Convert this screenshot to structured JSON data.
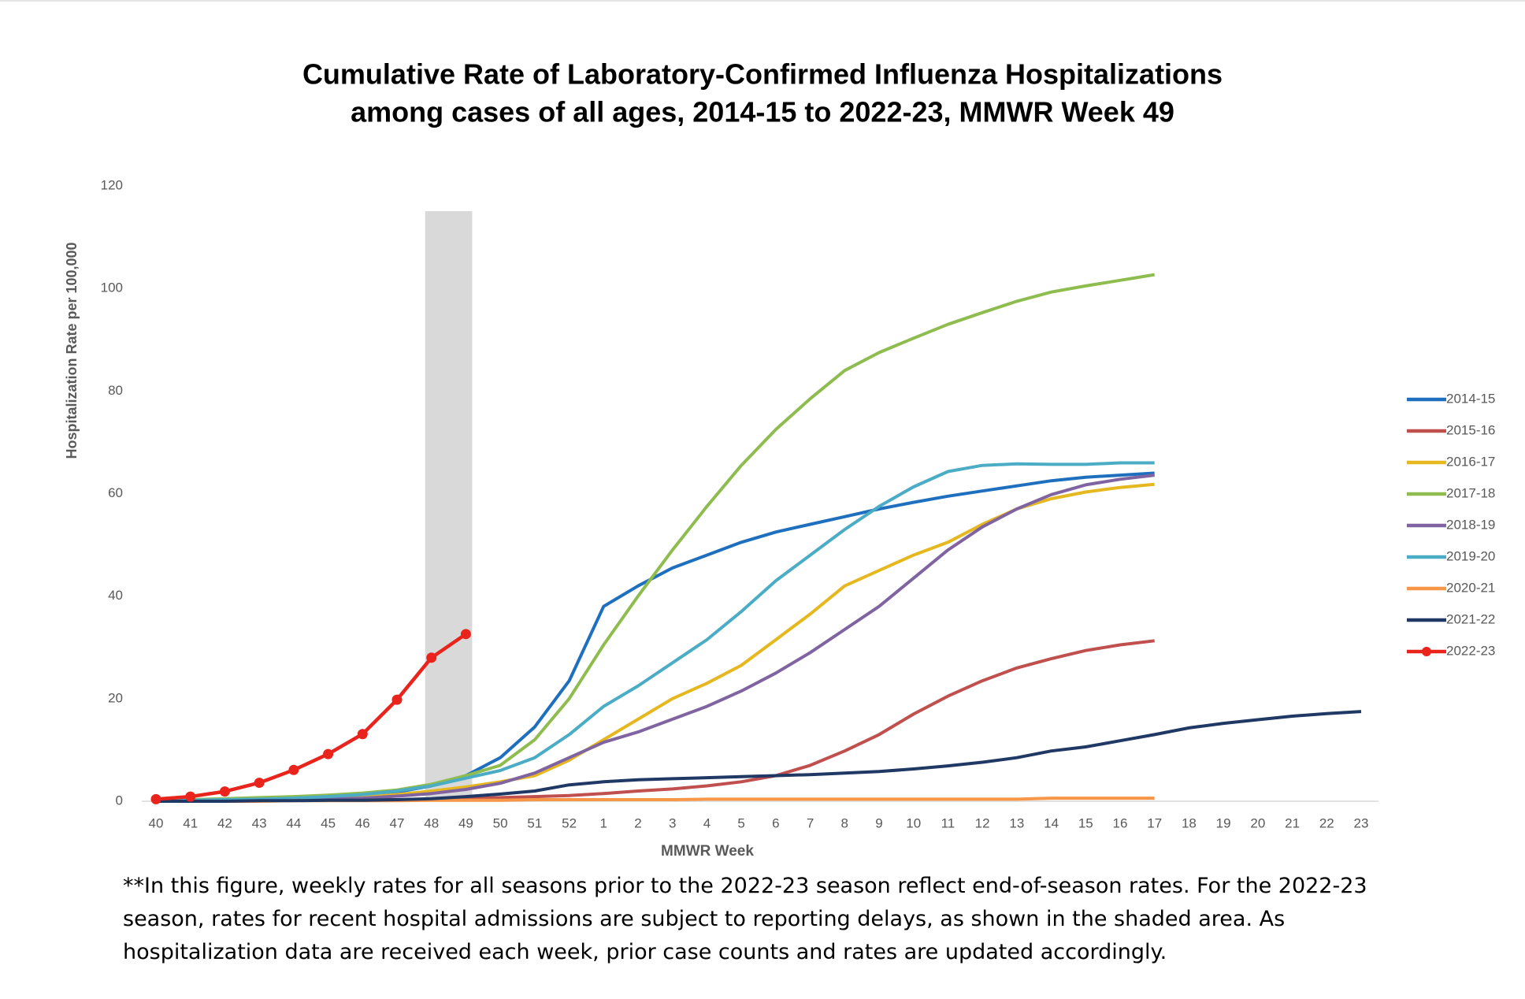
{
  "chart_data": {
    "type": "line",
    "title": [
      "Cumulative Rate of Laboratory-Confirmed Influenza Hospitalizations",
      "among cases of all ages, 2014-15 to 2022-23, MMWR Week 49"
    ],
    "x_label": "MMWR Week",
    "y_label": "Hospitalization Rate per 100,000",
    "categories": [
      "40",
      "41",
      "42",
      "43",
      "44",
      "45",
      "46",
      "47",
      "48",
      "49",
      "50",
      "51",
      "52",
      "1",
      "2",
      "3",
      "4",
      "5",
      "6",
      "7",
      "8",
      "9",
      "10",
      "11",
      "12",
      "13",
      "14",
      "15",
      "16",
      "17",
      "18",
      "19",
      "20",
      "21",
      "22",
      "23"
    ],
    "ylim": [
      0,
      120
    ],
    "yticks": [
      0,
      20,
      40,
      60,
      80,
      100,
      120
    ],
    "grid": false,
    "legend": "right",
    "highlight": {
      "from": "48",
      "to": "49",
      "color": "#d9d9d9"
    },
    "series": [
      {
        "name": "2014-15",
        "color": "#1f6fbf",
        "values": [
          0,
          0.1,
          0.2,
          0.3,
          0.5,
          0.8,
          1.2,
          1.8,
          3,
          5,
          8.5,
          14.5,
          23.5,
          38,
          42,
          45.5,
          48,
          50.5,
          52.5,
          54,
          55.5,
          57,
          58.3,
          59.5,
          60.5,
          61.5,
          62.5,
          63.2,
          63.6,
          64,
          null,
          null,
          null,
          null,
          null,
          null
        ]
      },
      {
        "name": "2015-16",
        "color": "#c0504d",
        "values": [
          0,
          0,
          0.1,
          0.1,
          0.2,
          0.2,
          0.3,
          0.3,
          0.4,
          0.5,
          0.7,
          0.9,
          1.1,
          1.5,
          2,
          2.4,
          3,
          3.8,
          5,
          7,
          9.8,
          13,
          17,
          20.5,
          23.5,
          26,
          27.8,
          29.4,
          30.5,
          31.3,
          null,
          null,
          null,
          null,
          null,
          null
        ]
      },
      {
        "name": "2016-17",
        "color": "#e6b820",
        "values": [
          0,
          0.1,
          0.1,
          0.2,
          0.3,
          0.5,
          0.8,
          1.3,
          2,
          2.8,
          3.8,
          5,
          8,
          12,
          16,
          20,
          23,
          26.5,
          31.5,
          36.5,
          42,
          45,
          48,
          50.5,
          54,
          57,
          59,
          60.3,
          61.2,
          61.8,
          null,
          null,
          null,
          null,
          null,
          null
        ]
      },
      {
        "name": "2017-18",
        "color": "#8fbc4f",
        "values": [
          0.2,
          0.3,
          0.5,
          0.7,
          0.9,
          1.2,
          1.6,
          2.2,
          3.3,
          5,
          7,
          12,
          20,
          30.5,
          40,
          49,
          57.5,
          65.5,
          72.5,
          78.5,
          84,
          87.5,
          90.3,
          93,
          95.3,
          97.5,
          99.3,
          100.5,
          101.6,
          102.7,
          null,
          null,
          null,
          null,
          null,
          null
        ]
      },
      {
        "name": "2018-19",
        "color": "#8064a2",
        "values": [
          0,
          0.1,
          0.1,
          0.2,
          0.3,
          0.4,
          0.6,
          1,
          1.5,
          2.3,
          3.5,
          5.5,
          8.5,
          11.5,
          13.5,
          16,
          18.5,
          21.5,
          25,
          29,
          33.5,
          38,
          43.5,
          49,
          53.5,
          57,
          59.8,
          61.7,
          62.8,
          63.6,
          null,
          null,
          null,
          null,
          null,
          null
        ]
      },
      {
        "name": "2019-20",
        "color": "#4bacc6",
        "values": [
          0.1,
          0.2,
          0.3,
          0.4,
          0.6,
          0.9,
          1.3,
          2,
          3,
          4.5,
          6,
          8.5,
          13,
          18.5,
          22.5,
          27,
          31.5,
          37,
          43,
          48,
          53,
          57.5,
          61.3,
          64.3,
          65.5,
          65.8,
          65.7,
          65.7,
          66,
          66,
          null,
          null,
          null,
          null,
          null,
          null
        ]
      },
      {
        "name": "2020-21",
        "color": "#f79646",
        "values": [
          0,
          0,
          0,
          0,
          0.1,
          0.1,
          0.1,
          0.1,
          0.2,
          0.2,
          0.2,
          0.3,
          0.3,
          0.3,
          0.3,
          0.3,
          0.4,
          0.4,
          0.4,
          0.4,
          0.4,
          0.4,
          0.4,
          0.4,
          0.4,
          0.4,
          0.6,
          0.6,
          0.6,
          0.6,
          null,
          null,
          null,
          null,
          null,
          null
        ]
      },
      {
        "name": "2021-22",
        "color": "#1f3864",
        "values": [
          0,
          0,
          0,
          0.1,
          0.1,
          0.2,
          0.2,
          0.3,
          0.5,
          0.9,
          1.4,
          2,
          3.2,
          3.8,
          4.2,
          4.4,
          4.6,
          4.8,
          5,
          5.2,
          5.5,
          5.8,
          6.3,
          6.9,
          7.6,
          8.5,
          9.8,
          10.6,
          11.8,
          13,
          14.3,
          15.2,
          15.9,
          16.6,
          17.1,
          17.5
        ]
      },
      {
        "name": "2022-23",
        "color": "#e8241c",
        "marker": true,
        "values": [
          0.4,
          0.9,
          1.9,
          3.6,
          6.1,
          9.2,
          13.1,
          19.8,
          28,
          32.6,
          null,
          null,
          null,
          null,
          null,
          null,
          null,
          null,
          null,
          null,
          null,
          null,
          null,
          null,
          null,
          null,
          null,
          null,
          null,
          null,
          null,
          null,
          null,
          null,
          null,
          null
        ]
      }
    ],
    "footnote": "**In this figure, weekly rates for all seasons prior to the 2022-23 season reflect end-of-season rates. For the 2022-23 season, rates for recent hospital admissions are subject to reporting delays, as shown in the shaded area. As hospitalization data are received each week, prior case counts and rates are updated accordingly."
  }
}
